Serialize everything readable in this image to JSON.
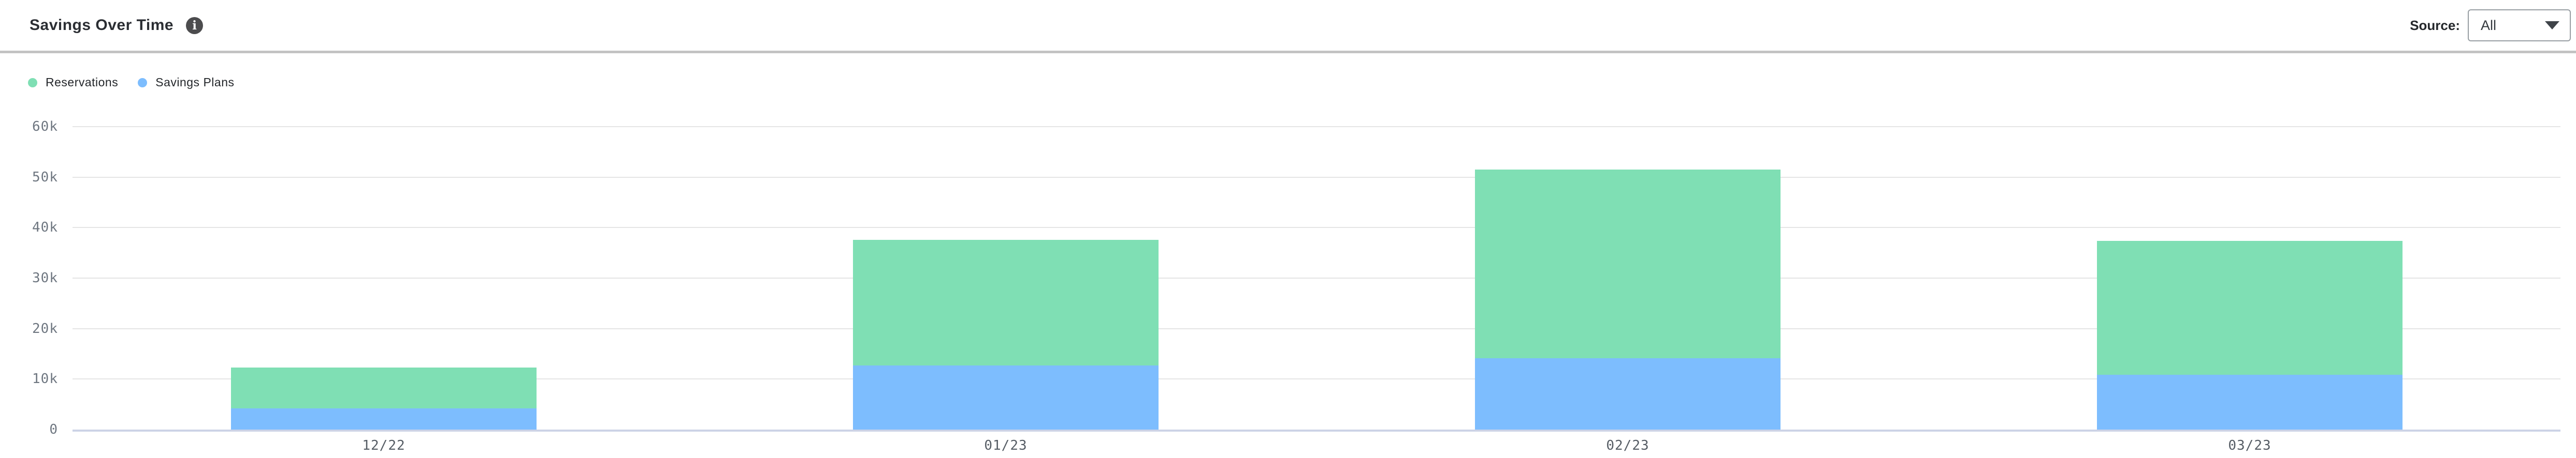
{
  "header": {
    "title": "Savings Over Time",
    "source_label": "Source:",
    "source_value": "All"
  },
  "legend": {
    "items": [
      {
        "label": "Reservations",
        "color": "#7fdfb4"
      },
      {
        "label": "Savings Plans",
        "color": "#7dbdfe"
      }
    ]
  },
  "chart_data": {
    "type": "bar",
    "stacked": true,
    "title": "Savings Over Time",
    "categories": [
      "12/22",
      "01/23",
      "02/23",
      "03/23"
    ],
    "series": [
      {
        "name": "Savings Plans",
        "color": "#7dbdfe",
        "values": [
          4200,
          12700,
          14100,
          10900
        ]
      },
      {
        "name": "Reservations",
        "color": "#7fdfb4",
        "values": [
          8100,
          24900,
          37400,
          26500
        ]
      }
    ],
    "totals": [
      12300,
      37600,
      51500,
      37400
    ],
    "xlabel": "",
    "ylabel": "",
    "ylim": [
      0,
      60000
    ],
    "yticks": [
      0,
      10000,
      20000,
      30000,
      40000,
      50000,
      60000
    ],
    "ytick_labels": [
      "0",
      "10k",
      "20k",
      "30k",
      "40k",
      "50k",
      "60k"
    ],
    "grid": true,
    "legend_position": "top-left",
    "zero_axis_color": "#ccd3e6",
    "grid_color": "#e5e5e5"
  }
}
